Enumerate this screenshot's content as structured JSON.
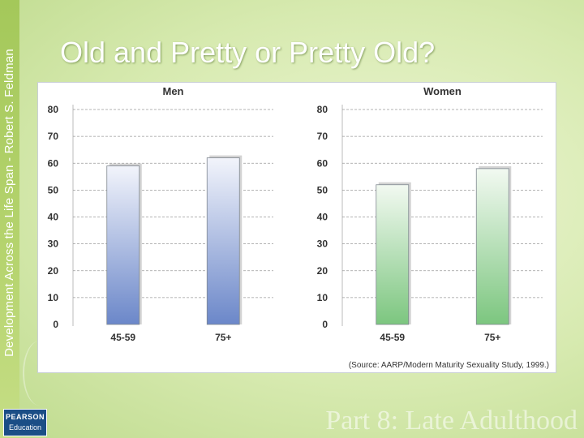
{
  "slide": {
    "title": "Old and Pretty or Pretty Old?",
    "side_text": "Development Across the Life Span - Robert S. Feldman",
    "footer": "Part 8: Late Adulthood",
    "logo_top": "PEARSON",
    "logo_bottom": "Education"
  },
  "source_note": "(Source: AARP/Modern Maturity Sexuality Study, 1999.)",
  "chart_data": [
    {
      "type": "bar",
      "title": "Men",
      "categories": [
        "45-59",
        "75+"
      ],
      "values": [
        59,
        62
      ],
      "ylim": [
        0,
        80
      ],
      "yticks": [
        0,
        10,
        20,
        30,
        40,
        50,
        60,
        70,
        80
      ],
      "grid": true,
      "color_top": "#f2f4fb",
      "color_bottom": "#6b87c9"
    },
    {
      "type": "bar",
      "title": "Women",
      "categories": [
        "45-59",
        "75+"
      ],
      "values": [
        52,
        58
      ],
      "ylim": [
        0,
        80
      ],
      "yticks": [
        0,
        10,
        20,
        30,
        40,
        50,
        60,
        70,
        80
      ],
      "grid": true,
      "color_top": "#f2f9f1",
      "color_bottom": "#7cc67f"
    }
  ]
}
